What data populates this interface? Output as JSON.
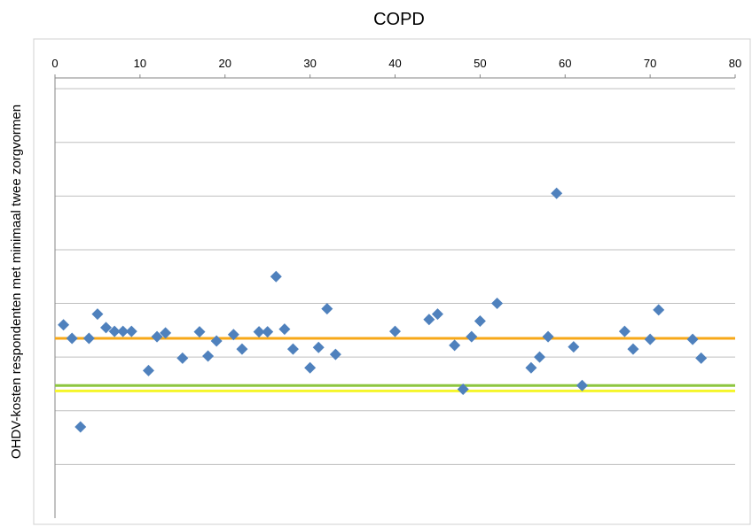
{
  "chart_data": {
    "type": "scatter",
    "title": "COPD",
    "xlabel": "",
    "ylabel": "OHDV-kosten respondenten met minimaal twee zorgvormen",
    "xlim": [
      0,
      80
    ],
    "xticks": [
      "0",
      "10",
      "20",
      "30",
      "40",
      "50",
      "60",
      "70",
      "80"
    ],
    "x_axis_position": "top",
    "ylim": [
      0,
      8.2
    ],
    "y_tick_labels_shown": false,
    "grid": "horizontal",
    "legend": "none",
    "series": [
      {
        "marker": "diamond",
        "color": "#4f81bd",
        "points": [
          [
            1,
            3.6
          ],
          [
            2,
            3.35
          ],
          [
            3,
            1.7
          ],
          [
            4,
            3.35
          ],
          [
            5,
            3.8
          ],
          [
            6,
            3.55
          ],
          [
            7,
            3.48
          ],
          [
            8,
            3.48
          ],
          [
            9,
            3.48
          ],
          [
            11,
            2.75
          ],
          [
            12,
            3.38
          ],
          [
            13,
            3.45
          ],
          [
            15,
            2.98
          ],
          [
            17,
            3.47
          ],
          [
            18,
            3.02
          ],
          [
            19,
            3.3
          ],
          [
            21,
            3.42
          ],
          [
            22,
            3.15
          ],
          [
            24,
            3.47
          ],
          [
            25,
            3.47
          ],
          [
            26,
            4.5
          ],
          [
            27,
            3.52
          ],
          [
            28,
            3.15
          ],
          [
            30,
            2.8
          ],
          [
            31,
            3.18
          ],
          [
            32,
            3.9
          ],
          [
            33,
            3.05
          ],
          [
            40,
            3.48
          ],
          [
            44,
            3.7
          ],
          [
            45,
            3.8
          ],
          [
            47,
            3.22
          ],
          [
            48,
            2.4
          ],
          [
            49,
            3.38
          ],
          [
            50,
            3.67
          ],
          [
            52,
            4.0
          ],
          [
            56,
            2.8
          ],
          [
            57,
            3.0
          ],
          [
            58,
            3.38
          ],
          [
            59,
            6.05
          ],
          [
            61,
            3.19
          ],
          [
            62,
            2.47
          ],
          [
            67,
            3.48
          ],
          [
            68,
            3.15
          ],
          [
            70,
            3.33
          ],
          [
            71,
            3.88
          ],
          [
            75,
            3.33
          ],
          [
            76,
            2.98
          ]
        ]
      }
    ],
    "reference_lines": [
      {
        "y": 3.35,
        "color": "#f7a818"
      },
      {
        "y": 2.47,
        "color": "#8dc63f"
      },
      {
        "y": 2.37,
        "color": "#f5f52a"
      }
    ],
    "colors": {
      "marker": "#4f81bd",
      "gridline": "#bfbfbf",
      "axis": "#868686"
    }
  }
}
